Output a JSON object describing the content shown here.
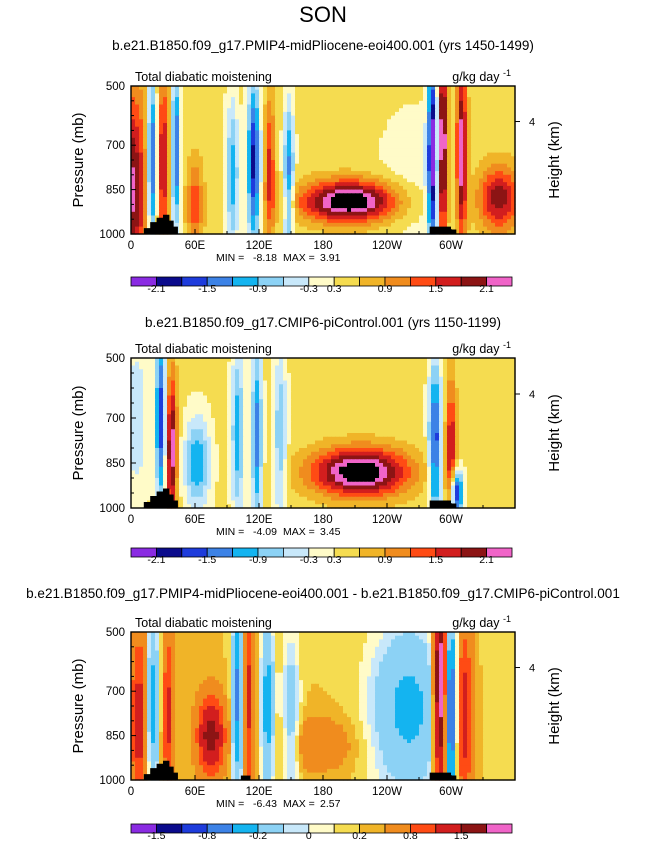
{
  "page": {
    "title": "SON"
  },
  "colors": {
    "levels": [
      "#8a2be2",
      "#0b0b8c",
      "#1e3cdc",
      "#3c82e6",
      "#14b4f0",
      "#8cd2f5",
      "#c8e8fa",
      "#fffbc8",
      "#f5dc50",
      "#f0b428",
      "#f08c1e",
      "#ff4b14",
      "#d21e1e",
      "#8c1414",
      "#f064c8"
    ],
    "terrain": "#000000"
  },
  "chart_data": [
    {
      "type": "heatmap",
      "title": "b.e21.B1850.f09_g17.PMIP4-midPliocene-eoi400.001 (yrs 1450-1499)",
      "left_label": "Total diabatic moistening",
      "units_label": "g/kg day",
      "units_exp": "-1",
      "ylabel": "Pressure (mb)",
      "ylabel_right": "Height (km)",
      "yticks": [
        "500",
        "700",
        "850",
        "1000"
      ],
      "ytick_values": [
        500,
        700,
        850,
        1000
      ],
      "ylim": [
        500,
        1000
      ],
      "yticks_right": [
        "4"
      ],
      "xticks": [
        "0",
        "60E",
        "120E",
        "180",
        "120W",
        "60W"
      ],
      "xtick_values": [
        0,
        60,
        120,
        180,
        240,
        300
      ],
      "xlim": [
        0,
        360
      ],
      "min_label": "MIN =",
      "min_value": "-8.18",
      "max_label": "MAX =",
      "max_value": "3.91",
      "colorbar_labels": [
        "-2.1",
        "-1.5",
        "-0.9",
        "-0.3",
        "0.3",
        "0.9",
        "1.5",
        "2.1"
      ],
      "colorbar_label_bounds": [
        1,
        3,
        5,
        7,
        8,
        10,
        12,
        14
      ],
      "colorbar_levels": [
        -2.1,
        -1.8,
        -1.5,
        -1.2,
        -0.9,
        -0.6,
        -0.3,
        0,
        0.3,
        0.6,
        0.9,
        1.2,
        1.5,
        1.8,
        2.1
      ],
      "features": [
        {
          "lon": 0,
          "p": 850,
          "width": 16,
          "depth": 350,
          "value": 1.8
        },
        {
          "lon": 20,
          "p": 760,
          "width": 5,
          "depth": 300,
          "value": -2.0
        },
        {
          "lon": 30,
          "p": 750,
          "width": 6,
          "depth": 300,
          "value": 1.4
        },
        {
          "lon": 42,
          "p": 720,
          "width": 4,
          "depth": 280,
          "value": -1.7
        },
        {
          "lon": 60,
          "p": 900,
          "width": 8,
          "depth": 150,
          "value": 1.0
        },
        {
          "lon": 95,
          "p": 800,
          "width": 6,
          "depth": 250,
          "value": -1.2
        },
        {
          "lon": 115,
          "p": 760,
          "width": 6,
          "depth": 280,
          "value": -2.0
        },
        {
          "lon": 130,
          "p": 780,
          "width": 5,
          "depth": 250,
          "value": 1.2
        },
        {
          "lon": 148,
          "p": 800,
          "width": 5,
          "depth": 250,
          "value": -1.4
        },
        {
          "lon": 205,
          "p": 890,
          "width": 45,
          "depth": 70,
          "value": 2.4
        },
        {
          "lon": 265,
          "p": 830,
          "width": 35,
          "depth": 260,
          "value": -0.3
        },
        {
          "lon": 283,
          "p": 720,
          "width": 5,
          "depth": 340,
          "value": -2.4
        },
        {
          "lon": 292,
          "p": 700,
          "width": 5,
          "depth": 340,
          "value": 2.3
        },
        {
          "lon": 310,
          "p": 720,
          "width": 5,
          "depth": 300,
          "value": 2.0
        },
        {
          "lon": 345,
          "p": 880,
          "width": 20,
          "depth": 110,
          "value": 1.6
        }
      ]
    },
    {
      "type": "heatmap",
      "title": "b.e21.B1850.f09_g17.CMIP6-piControl.001 (yrs 1150-1199)",
      "left_label": "Total diabatic moistening",
      "units_label": "g/kg day",
      "units_exp": "-1",
      "ylabel": "Pressure (mb)",
      "ylabel_right": "Height (km)",
      "yticks": [
        "500",
        "700",
        "850",
        "1000"
      ],
      "ytick_values": [
        500,
        700,
        850,
        1000
      ],
      "ylim": [
        500,
        1000
      ],
      "yticks_right": [
        "4"
      ],
      "xticks": [
        "0",
        "60E",
        "120E",
        "180",
        "120W",
        "60W"
      ],
      "xtick_values": [
        0,
        60,
        120,
        180,
        240,
        300
      ],
      "xlim": [
        0,
        360
      ],
      "min_label": "MIN =",
      "min_value": "-4.09",
      "max_label": "MAX =",
      "max_value": "3.45",
      "colorbar_labels": [
        "-2.1",
        "-1.5",
        "-0.9",
        "-0.3",
        "0.3",
        "0.9",
        "1.5",
        "2.1"
      ],
      "colorbar_label_bounds": [
        1,
        3,
        5,
        7,
        8,
        10,
        12,
        14
      ],
      "colorbar_levels": [
        -2.1,
        -1.8,
        -1.5,
        -1.2,
        -0.9,
        -0.6,
        -0.3,
        0,
        0.3,
        0.6,
        0.9,
        1.2,
        1.5,
        1.8,
        2.1
      ],
      "features": [
        {
          "lon": 5,
          "p": 700,
          "width": 12,
          "depth": 300,
          "value": -0.6
        },
        {
          "lon": 28,
          "p": 700,
          "width": 5,
          "depth": 300,
          "value": -1.8
        },
        {
          "lon": 38,
          "p": 800,
          "width": 5,
          "depth": 250,
          "value": 2.0
        },
        {
          "lon": 62,
          "p": 850,
          "width": 12,
          "depth": 150,
          "value": -1.3
        },
        {
          "lon": 100,
          "p": 750,
          "width": 6,
          "depth": 300,
          "value": -1.2
        },
        {
          "lon": 118,
          "p": 760,
          "width": 5,
          "depth": 300,
          "value": -1.5
        },
        {
          "lon": 140,
          "p": 760,
          "width": 6,
          "depth": 300,
          "value": -1.0
        },
        {
          "lon": 215,
          "p": 880,
          "width": 45,
          "depth": 80,
          "value": 2.4
        },
        {
          "lon": 285,
          "p": 780,
          "width": 6,
          "depth": 280,
          "value": -1.8
        },
        {
          "lon": 300,
          "p": 820,
          "width": 5,
          "depth": 250,
          "value": 1.5
        },
        {
          "lon": 305,
          "p": 950,
          "width": 6,
          "depth": 80,
          "value": -2.2
        }
      ]
    },
    {
      "type": "heatmap",
      "title": "b.e21.B1850.f09_g17.PMIP4-midPliocene-eoi400.001 - b.e21.B1850.f09_g17.CMIP6-piControl.001",
      "left_label": "Total diabatic moistening",
      "units_label": "g/kg day",
      "units_exp": "-1",
      "ylabel": "Pressure (mb)",
      "ylabel_right": "Height (km)",
      "yticks": [
        "500",
        "700",
        "850",
        "1000"
      ],
      "ytick_values": [
        500,
        700,
        850,
        1000
      ],
      "ylim": [
        500,
        1000
      ],
      "yticks_right": [
        "4"
      ],
      "xticks": [
        "0",
        "60E",
        "120E",
        "180",
        "120W",
        "60W"
      ],
      "xtick_values": [
        0,
        60,
        120,
        180,
        240,
        300
      ],
      "xlim": [
        0,
        360
      ],
      "min_label": "MIN =",
      "min_value": "-6.43",
      "max_label": "MAX =",
      "max_value": "2.57",
      "colorbar_labels": [
        "-1.5",
        "-0.8",
        "-0.2",
        "0",
        "0.2",
        "0.8",
        "1.5"
      ],
      "colorbar_label_bounds": [
        1,
        3,
        5,
        7,
        9,
        11,
        13
      ],
      "colorbar_levels": [
        -2.0,
        -1.5,
        -1.2,
        -0.8,
        -0.5,
        -0.2,
        -0.1,
        0,
        0.1,
        0.2,
        0.5,
        0.8,
        1.2,
        1.5,
        2.0
      ],
      "features": [
        {
          "lon": 8,
          "p": 800,
          "width": 8,
          "depth": 300,
          "value": 0.9
        },
        {
          "lon": 20,
          "p": 750,
          "width": 6,
          "depth": 300,
          "value": -0.8
        },
        {
          "lon": 35,
          "p": 780,
          "width": 5,
          "depth": 280,
          "value": 0.8
        },
        {
          "lon": 75,
          "p": 850,
          "width": 12,
          "depth": 120,
          "value": 1.4
        },
        {
          "lon": 100,
          "p": 720,
          "width": 5,
          "depth": 320,
          "value": -1.0
        },
        {
          "lon": 110,
          "p": 720,
          "width": 5,
          "depth": 320,
          "value": 0.8
        },
        {
          "lon": 128,
          "p": 760,
          "width": 6,
          "depth": 300,
          "value": -0.8
        },
        {
          "lon": 150,
          "p": 800,
          "width": 8,
          "depth": 280,
          "value": -0.5
        },
        {
          "lon": 175,
          "p": 880,
          "width": 35,
          "depth": 90,
          "value": 0.3
        },
        {
          "lon": 260,
          "p": 760,
          "width": 35,
          "depth": 280,
          "value": -0.7
        },
        {
          "lon": 290,
          "p": 690,
          "width": 6,
          "depth": 350,
          "value": 2.0
        },
        {
          "lon": 300,
          "p": 760,
          "width": 6,
          "depth": 300,
          "value": -1.3
        },
        {
          "lon": 312,
          "p": 780,
          "width": 8,
          "depth": 280,
          "value": 1.0
        }
      ]
    }
  ]
}
